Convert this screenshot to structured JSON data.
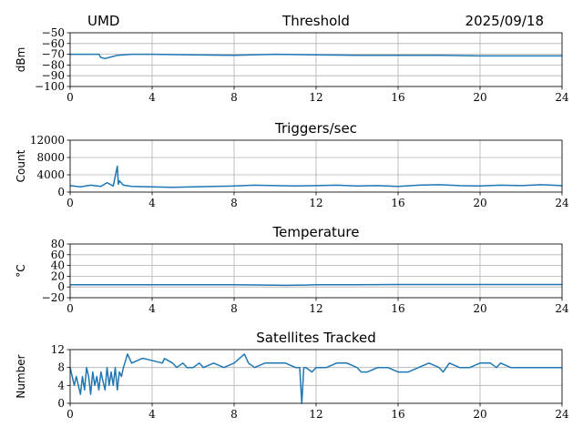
{
  "header": {
    "left": "UMD",
    "date": "2025/09/18"
  },
  "chart_data": [
    {
      "type": "line",
      "title": "Threshold",
      "ylabel": "dBm",
      "xlabel": "",
      "xlim": [
        0,
        24
      ],
      "ylim": [
        -100,
        -50
      ],
      "xticks": [
        0,
        4,
        8,
        12,
        16,
        20,
        24
      ],
      "yticks": [
        -100,
        -90,
        -80,
        -70,
        -60,
        -50
      ],
      "ytick_labels": [
        "−100",
        "−90",
        "−80",
        "−70",
        "−60",
        "−50"
      ],
      "grid": true,
      "color": "#1f77b4",
      "series": [
        {
          "x": [
            0,
            1.4,
            1.5,
            1.7,
            2.0,
            2.3,
            3,
            4,
            6,
            8,
            10,
            12,
            14,
            16,
            18,
            20,
            22,
            24
          ],
          "y": [
            -70,
            -70,
            -73,
            -74,
            -72.5,
            -71,
            -70,
            -70,
            -70.5,
            -71,
            -70,
            -70.5,
            -71,
            -71,
            -71,
            -71.5,
            -71.5,
            -71.5
          ]
        }
      ]
    },
    {
      "type": "line",
      "title": "Triggers/sec",
      "ylabel": "Count",
      "xlabel": "",
      "xlim": [
        0,
        24
      ],
      "ylim": [
        0,
        12000
      ],
      "xticks": [
        0,
        4,
        8,
        12,
        16,
        20,
        24
      ],
      "yticks": [
        0,
        4000,
        8000,
        12000
      ],
      "ytick_labels": [
        "0",
        "4000",
        "8000",
        "12000"
      ],
      "grid": true,
      "color": "#1f77b4",
      "series": [
        {
          "x": [
            0,
            0.5,
            1,
            1.5,
            1.8,
            2.1,
            2.3,
            2.35,
            2.4,
            2.6,
            3,
            4,
            5,
            6,
            7,
            8,
            9,
            10,
            11,
            12,
            13,
            14,
            15,
            16,
            17,
            18,
            19,
            20,
            21,
            22,
            23,
            24
          ],
          "y": [
            1500,
            1200,
            1600,
            1300,
            2200,
            1400,
            6000,
            1800,
            2600,
            1600,
            1300,
            1200,
            1100,
            1200,
            1300,
            1400,
            1600,
            1500,
            1400,
            1500,
            1600,
            1400,
            1500,
            1300,
            1600,
            1700,
            1500,
            1400,
            1600,
            1500,
            1700,
            1500
          ]
        }
      ]
    },
    {
      "type": "line",
      "title": "Temperature",
      "ylabel": "°C",
      "xlabel": "",
      "xlim": [
        0,
        24
      ],
      "ylim": [
        -20,
        80
      ],
      "xticks": [
        0,
        4,
        8,
        12,
        16,
        20,
        24
      ],
      "yticks": [
        -20,
        0,
        20,
        40,
        60,
        80
      ],
      "ytick_labels": [
        "−20",
        "0",
        "20",
        "40",
        "60",
        "80"
      ],
      "grid": true,
      "color": "#1f77b4",
      "series": [
        {
          "x": [
            0,
            4,
            8,
            9.5,
            10.5,
            11.5,
            12,
            14,
            16,
            18,
            20,
            22,
            24
          ],
          "y": [
            4,
            4,
            4,
            3.5,
            3,
            3.5,
            4,
            4,
            4.5,
            4.5,
            4.5,
            4.5,
            4.5
          ]
        }
      ]
    },
    {
      "type": "line",
      "title": "Satellites Tracked",
      "ylabel": "Number",
      "xlabel": "",
      "xlim": [
        0,
        24
      ],
      "ylim": [
        0,
        12
      ],
      "xticks": [
        0,
        4,
        8,
        12,
        16,
        20,
        24
      ],
      "yticks": [
        0,
        4,
        8,
        12
      ],
      "ytick_labels": [
        "0",
        "4",
        "8",
        "12"
      ],
      "grid": true,
      "color": "#1f77b4",
      "series": [
        {
          "x": [
            0,
            0.2,
            0.3,
            0.5,
            0.6,
            0.7,
            0.8,
            0.9,
            1.0,
            1.1,
            1.2,
            1.3,
            1.4,
            1.5,
            1.6,
            1.7,
            1.8,
            1.9,
            2.0,
            2.1,
            2.2,
            2.3,
            2.4,
            2.5,
            2.6,
            2.8,
            3.0,
            3.5,
            3.6,
            4.5,
            4.6,
            5.0,
            5.2,
            5.5,
            5.7,
            6.0,
            6.3,
            6.5,
            7.0,
            7.5,
            8.0,
            8.5,
            8.7,
            9.0,
            9.5,
            10.0,
            10.5,
            11.0,
            11.2,
            11.3,
            11.4,
            11.5,
            11.8,
            12.0,
            12.2,
            12.5,
            13.0,
            13.5,
            14.0,
            14.2,
            14.5,
            15.0,
            15.5,
            16.0,
            16.5,
            17.0,
            17.5,
            18.0,
            18.2,
            18.5,
            19.0,
            19.5,
            20.0,
            20.5,
            20.8,
            21.0,
            21.5,
            22.0,
            22.5,
            23.0,
            23.5,
            24.0
          ],
          "y": [
            8,
            4,
            6,
            2,
            6,
            3,
            8,
            6,
            2,
            7,
            4,
            6,
            3,
            7,
            5,
            3,
            8,
            4,
            7,
            4,
            8,
            3,
            7,
            6,
            8,
            11,
            9,
            10,
            10,
            9,
            10,
            9,
            8,
            9,
            8,
            8,
            9,
            8,
            9,
            8,
            9,
            11,
            9,
            8,
            9,
            9,
            9,
            8,
            8,
            0,
            8,
            8,
            7,
            8,
            8,
            8,
            9,
            9,
            8,
            7,
            7,
            8,
            8,
            7,
            7,
            8,
            9,
            8,
            7,
            9,
            8,
            8,
            9,
            9,
            8,
            9,
            8,
            8,
            8,
            8,
            8,
            8
          ]
        }
      ]
    }
  ]
}
